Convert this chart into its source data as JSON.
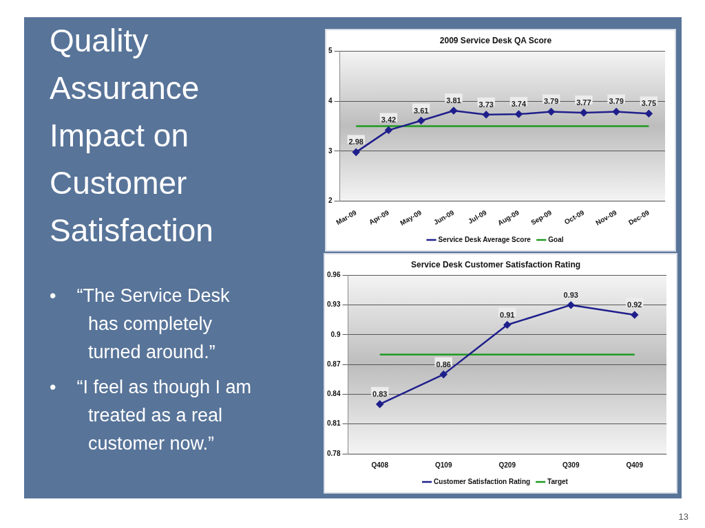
{
  "chart_data": [
    {
      "type": "other",
      "title": "Quality Assurance Impact on Customer Satisfaction",
      "annotations": [
        "•    “The Service Desk has completely turned around.”",
        "•    “I feel as though I am treated as a real customer now.”",
        "13"
      ]
    },
    {
      "type": "line",
      "title": "2009 Service Desk QA Score",
      "categories": [
        "Mar-09",
        "Apr-09",
        "May-09",
        "Jun-09",
        "Jul-09",
        "Aug-09",
        "Sep-09",
        "Oct-09",
        "Nov-09",
        "Dec-09"
      ],
      "ylim": [
        2,
        5
      ],
      "yticks": [
        2,
        3,
        4,
        5
      ],
      "grid": "y",
      "legend": "bottom",
      "series": [
        {
          "name": "Service Desk Average Score",
          "color": "#1f1f8c",
          "marker": "diamond",
          "values": [
            2.98,
            3.42,
            3.61,
            3.81,
            3.73,
            3.74,
            3.79,
            3.77,
            3.79,
            3.75
          ],
          "value_labels": [
            "2.98",
            "3.42",
            "3.61",
            "3.81",
            "3.73",
            "3.74",
            "3.79",
            "3.77",
            "3.79",
            "3.75"
          ]
        },
        {
          "name": "Goal",
          "color": "#1e9a1e",
          "marker": "none",
          "values": [
            3.5,
            3.5,
            3.5,
            3.5,
            3.5,
            3.5,
            3.5,
            3.5,
            3.5,
            3.5
          ]
        }
      ]
    },
    {
      "type": "line",
      "title": "Service Desk Customer Satisfaction Rating",
      "categories": [
        "Q408",
        "Q109",
        "Q209",
        "Q309",
        "Q409"
      ],
      "ylim": [
        0.78,
        0.96
      ],
      "yticks": [
        0.78,
        0.81,
        0.84,
        0.87,
        0.9,
        0.93,
        0.96
      ],
      "grid": "y",
      "legend": "bottom",
      "series": [
        {
          "name": "Customer Satisfaction Rating",
          "color": "#1f1f8c",
          "marker": "diamond",
          "values": [
            0.83,
            0.86,
            0.91,
            0.93,
            0.92
          ],
          "value_labels": [
            "0.83",
            "0.86",
            "0.91",
            "0.93",
            "0.92"
          ]
        },
        {
          "name": "Target",
          "color": "#1e9a1e",
          "marker": "none",
          "values": [
            0.88,
            0.88,
            0.88,
            0.88,
            0.88
          ]
        }
      ]
    }
  ]
}
